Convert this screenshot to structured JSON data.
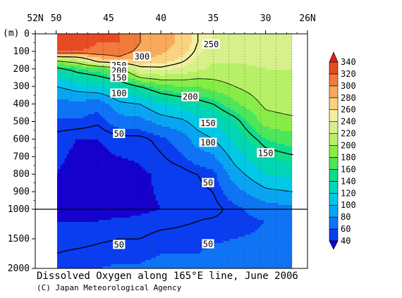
{
  "chart_data": {
    "type": "heatmap",
    "title": "Dissolved Oxygen along 165°E line, June 2006",
    "credit": "(C) Japan Meteorological Agency",
    "ylabel": "(m)",
    "x_direction": "latitude decreasing to the right",
    "x_tick_labels": [
      "52N",
      "50",
      "45",
      "40",
      "35",
      "30",
      "26N"
    ],
    "x_ticks_lat": [
      52,
      50,
      45,
      40,
      35,
      30,
      26
    ],
    "xlim": [
      52,
      26
    ],
    "data_lat_range": [
      50,
      27.5
    ],
    "ylim": [
      0,
      2000
    ],
    "y_break_depth": 1000,
    "y_tick_labels_upper": [
      "0",
      "100",
      "200",
      "300",
      "400",
      "500",
      "600",
      "700",
      "800",
      "900",
      "1000"
    ],
    "y_ticks_upper": [
      0,
      100,
      200,
      300,
      400,
      500,
      600,
      700,
      800,
      900,
      1000
    ],
    "y_tick_labels_lower": [
      "1500",
      "2000"
    ],
    "y_ticks_lower": [
      1500,
      2000
    ],
    "colorbar": {
      "levels": [
        40,
        60,
        80,
        100,
        120,
        140,
        160,
        180,
        200,
        220,
        240,
        260,
        280,
        300,
        320,
        340
      ],
      "labels": [
        "40",
        "60",
        "80",
        "100",
        "120",
        "140",
        "160",
        "180",
        "200",
        "220",
        "240",
        "260",
        "280",
        "300",
        "320",
        "340"
      ],
      "colors": [
        "#1500cc",
        "#0a3cf0",
        "#0e74f5",
        "#0aa5f2",
        "#00c8e6",
        "#00d6b4",
        "#10dc8a",
        "#4ce65a",
        "#88ec46",
        "#b6f066",
        "#d8f08c",
        "#f2f0a0",
        "#fad282",
        "#f8aa5a",
        "#f27a3c",
        "#e84b24",
        "#d8201a"
      ],
      "extend": "both"
    },
    "oxygen_profiles": [
      {
        "lat": 50.0,
        "depth": [
          0,
          50,
          100,
          120,
          140,
          200,
          300,
          400,
          600,
          800,
          1000,
          1200,
          1500,
          2000
        ],
        "oxygen": [
          330,
          330,
          320,
          280,
          220,
          140,
          100,
          70,
          45,
          40,
          40,
          40,
          45,
          55
        ]
      },
      {
        "lat": 48.0,
        "depth": [
          0,
          50,
          100,
          120,
          140,
          200,
          300,
          400,
          600,
          800,
          1000,
          1200,
          1500,
          2000
        ],
        "oxygen": [
          330,
          330,
          320,
          280,
          230,
          160,
          110,
          75,
          40,
          35,
          35,
          40,
          45,
          60
        ]
      },
      {
        "lat": 46.0,
        "depth": [
          0,
          50,
          100,
          130,
          160,
          200,
          300,
          400,
          600,
          800,
          1000,
          1200,
          1500,
          2000
        ],
        "oxygen": [
          320,
          320,
          315,
          290,
          250,
          170,
          120,
          65,
          40,
          35,
          35,
          40,
          48,
          60
        ]
      },
      {
        "lat": 44.0,
        "depth": [
          0,
          50,
          100,
          130,
          160,
          200,
          300,
          400,
          600,
          800,
          1000,
          1200,
          1500,
          2000
        ],
        "oxygen": [
          320,
          320,
          310,
          300,
          260,
          190,
          130,
          95,
          45,
          35,
          35,
          42,
          50,
          62
        ]
      },
      {
        "lat": 42.0,
        "depth": [
          0,
          50,
          100,
          150,
          200,
          250,
          300,
          400,
          600,
          800,
          1000,
          1200,
          1500,
          2000
        ],
        "oxygen": [
          300,
          300,
          295,
          280,
          240,
          200,
          150,
          100,
          45,
          38,
          38,
          42,
          50,
          62
        ]
      },
      {
        "lat": 40.0,
        "depth": [
          0,
          50,
          100,
          150,
          200,
          250,
          300,
          400,
          600,
          800,
          1000,
          1200,
          1500,
          2000
        ],
        "oxygen": [
          290,
          290,
          285,
          270,
          245,
          210,
          170,
          120,
          55,
          42,
          40,
          45,
          55,
          65
        ]
      },
      {
        "lat": 38.0,
        "depth": [
          0,
          50,
          100,
          150,
          200,
          300,
          400,
          500,
          600,
          800,
          1000,
          1200,
          1500,
          2000
        ],
        "oxygen": [
          275,
          275,
          270,
          255,
          235,
          180,
          130,
          95,
          70,
          45,
          42,
          48,
          55,
          65
        ]
      },
      {
        "lat": 36.5,
        "depth": [
          0,
          50,
          100,
          200,
          300,
          400,
          500,
          600,
          800,
          1000,
          1200,
          1500,
          2000
        ],
        "oxygen": [
          250,
          250,
          245,
          225,
          180,
          140,
          110,
          90,
          50,
          45,
          50,
          55,
          65
        ]
      },
      {
        "lat": 35.0,
        "depth": [
          0,
          50,
          100,
          200,
          300,
          400,
          500,
          600,
          800,
          1000,
          1200,
          1500,
          2000
        ],
        "oxygen": [
          240,
          240,
          230,
          215,
          190,
          150,
          120,
          100,
          55,
          45,
          52,
          58,
          68
        ]
      },
      {
        "lat": 33.0,
        "depth": [
          0,
          50,
          100,
          200,
          300,
          400,
          500,
          600,
          800,
          1000,
          1200,
          1500,
          2000
        ],
        "oxygen": [
          235,
          235,
          230,
          215,
          200,
          175,
          140,
          125,
          90,
          55,
          55,
          60,
          70
        ]
      },
      {
        "lat": 30.0,
        "depth": [
          0,
          50,
          100,
          200,
          300,
          400,
          500,
          600,
          800,
          1000,
          1200,
          1500,
          2000
        ],
        "oxygen": [
          230,
          230,
          228,
          220,
          215,
          205,
          190,
          160,
          120,
          70,
          60,
          62,
          72
        ]
      },
      {
        "lat": 27.5,
        "depth": [
          0,
          50,
          100,
          200,
          300,
          400,
          500,
          600,
          800,
          1000,
          1200,
          1500,
          2000
        ],
        "oxygen": [
          225,
          225,
          225,
          220,
          218,
          210,
          195,
          170,
          125,
          75,
          62,
          64,
          74
        ]
      }
    ],
    "contour_labels": [
      {
        "text": "250",
        "lat": 35.2,
        "depth": 60
      },
      {
        "text": "300",
        "lat": 41.8,
        "depth": 130
      },
      {
        "text": "250",
        "lat": 44.0,
        "depth": 180
      },
      {
        "text": "200",
        "lat": 44.0,
        "depth": 210
      },
      {
        "text": "150",
        "lat": 44.0,
        "depth": 250
      },
      {
        "text": "100",
        "lat": 44.0,
        "depth": 340
      },
      {
        "text": "50",
        "lat": 44.0,
        "depth": 570
      },
      {
        "text": "200",
        "lat": 37.2,
        "depth": 360
      },
      {
        "text": "150",
        "lat": 35.5,
        "depth": 510
      },
      {
        "text": "100",
        "lat": 35.5,
        "depth": 620
      },
      {
        "text": "50",
        "lat": 35.5,
        "depth": 850
      },
      {
        "text": "150",
        "lat": 30.0,
        "depth": 680
      },
      {
        "text": "50",
        "lat": 44.0,
        "depth": 1600
      },
      {
        "text": "50",
        "lat": 35.5,
        "depth": 1590
      }
    ]
  }
}
